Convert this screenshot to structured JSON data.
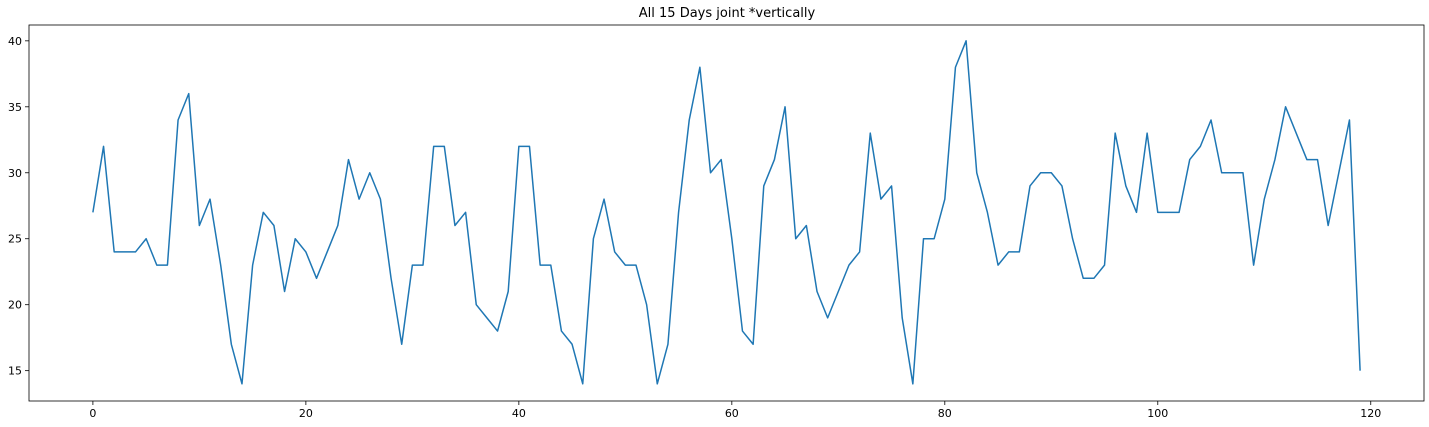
{
  "chart_data": {
    "type": "line",
    "title": "All 15 Days joint *vertically",
    "xlabel": "",
    "ylabel": "",
    "xlim": [
      -6,
      125
    ],
    "ylim": [
      12.7,
      41.2
    ],
    "xticks": [
      0,
      20,
      40,
      60,
      80,
      100,
      120
    ],
    "yticks": [
      15,
      20,
      25,
      30,
      35,
      40
    ],
    "grid": false,
    "line_color": "#1f77b4",
    "series": [
      {
        "values": [
          27,
          32,
          24,
          24,
          24,
          25,
          23,
          23,
          34,
          36,
          26,
          28,
          23,
          17,
          14,
          23,
          27,
          26,
          21,
          25,
          24,
          22,
          24,
          26,
          31,
          28,
          30,
          28,
          22,
          17,
          23,
          23,
          32,
          32,
          26,
          27,
          20,
          19,
          18,
          21,
          32,
          32,
          23,
          23,
          18,
          17,
          14,
          25,
          28,
          24,
          23,
          23,
          20,
          14,
          17,
          27,
          34,
          38,
          30,
          31,
          25,
          18,
          17,
          29,
          31,
          35,
          25,
          26,
          21,
          19,
          21,
          23,
          24,
          33,
          28,
          29,
          19,
          14,
          25,
          25,
          28,
          38,
          40,
          30,
          27,
          23,
          24,
          24,
          29,
          30,
          30,
          29,
          25,
          22,
          22,
          23,
          33,
          29,
          27,
          33,
          27,
          27,
          27,
          31,
          32,
          34,
          30,
          30,
          30,
          23,
          28,
          31,
          35,
          33,
          31,
          31,
          26,
          30,
          34,
          15
        ]
      }
    ]
  }
}
